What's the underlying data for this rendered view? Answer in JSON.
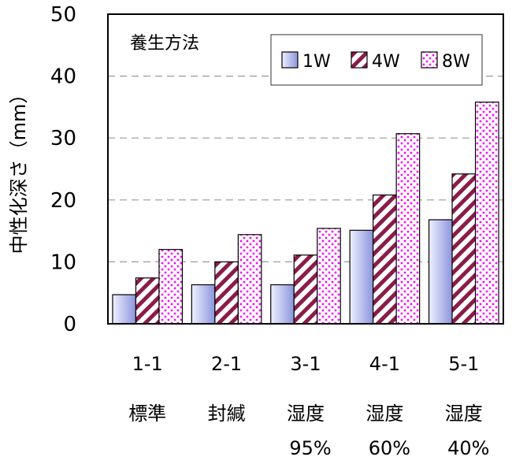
{
  "chart_data": {
    "type": "bar",
    "title": "",
    "xlabel": "",
    "ylabel": "中性化深さ（mm）",
    "ylim": [
      0,
      50
    ],
    "yticks": [
      0,
      10,
      20,
      30,
      40,
      50
    ],
    "grid": "horizontal-dashed",
    "categories": [
      {
        "code": "1-1",
        "line1": "標準",
        "line2": ""
      },
      {
        "code": "2-1",
        "line1": "封緘",
        "line2": ""
      },
      {
        "code": "3-1",
        "line1": "湿度",
        "line2": "95%"
      },
      {
        "code": "4-1",
        "line1": "湿度",
        "line2": "60%"
      },
      {
        "code": "5-1",
        "line1": "湿度",
        "line2": "40%"
      }
    ],
    "legend": {
      "title": "養生方法",
      "placement": "top"
    },
    "series": [
      {
        "name": "1W",
        "style": "gradient-blue",
        "color": "#9ea6e0",
        "values": [
          4.7,
          6.3,
          6.3,
          15.1,
          16.8
        ]
      },
      {
        "name": "4W",
        "style": "diagonal-hatch",
        "color": "#8a1c4a",
        "values": [
          7.4,
          10.0,
          11.1,
          20.8,
          24.2
        ]
      },
      {
        "name": "8W",
        "style": "dotted",
        "color": "#ff00ff",
        "values": [
          12.0,
          14.4,
          15.4,
          30.7,
          35.8
        ]
      }
    ]
  }
}
